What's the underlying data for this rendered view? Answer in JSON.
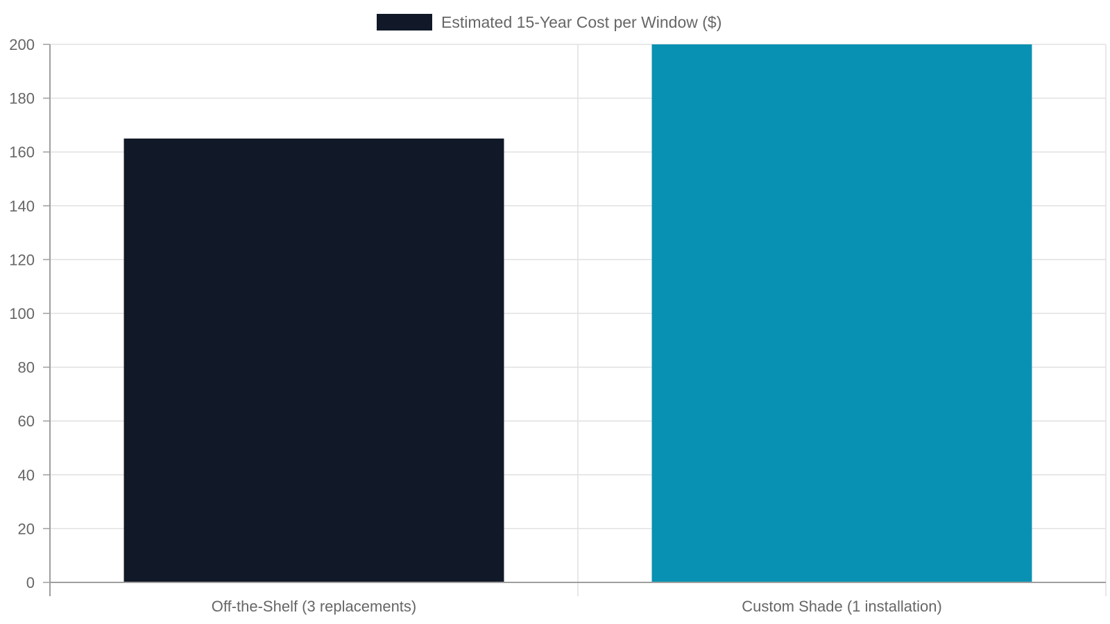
{
  "chart_data": {
    "type": "bar",
    "categories": [
      "Off-the-Shelf (3 replacements)",
      "Custom Shade (1 installation)"
    ],
    "series": [
      {
        "name": "Estimated 15-Year Cost per Window ($)",
        "values": [
          165,
          200
        ],
        "colors": [
          "#111827",
          "#0891b2"
        ]
      }
    ],
    "ylim": [
      0,
      200
    ],
    "y_ticks": [
      0,
      20,
      40,
      60,
      80,
      100,
      120,
      140,
      160,
      180,
      200
    ],
    "grid": true,
    "legend_position": "top-center",
    "legend_color": "#111827",
    "axis_color": "#9e9e9e",
    "grid_color": "#e0e0e0",
    "text_color": "#666666"
  }
}
